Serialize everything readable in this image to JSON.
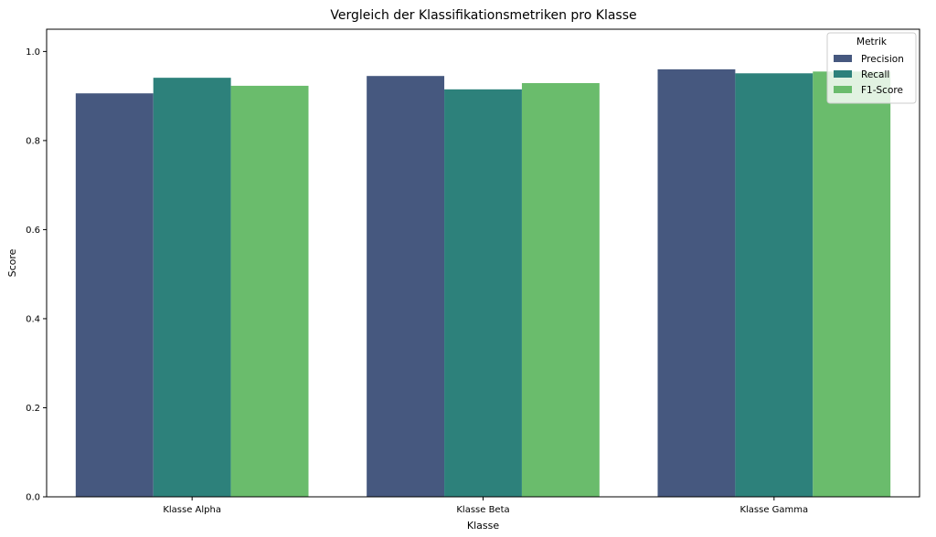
{
  "chart_data": {
    "type": "bar",
    "title": "Vergleich der Klassifikationsmetriken pro Klasse",
    "xlabel": "Klasse",
    "ylabel": "Score",
    "categories": [
      "Klasse Alpha",
      "Klasse Beta",
      "Klasse Gamma"
    ],
    "series": [
      {
        "name": "Precision",
        "values": [
          0.906,
          0.945,
          0.96
        ],
        "color": "#46587f"
      },
      {
        "name": "Recall",
        "values": [
          0.941,
          0.915,
          0.951
        ],
        "color": "#2d817b"
      },
      {
        "name": "F1-Score",
        "values": [
          0.923,
          0.929,
          0.955
        ],
        "color": "#6abc6c"
      }
    ],
    "ylim": [
      0,
      1.05
    ],
    "yticks": [
      0.0,
      0.2,
      0.4,
      0.6,
      0.8,
      1.0
    ],
    "ytick_labels": [
      "0.0",
      "0.2",
      "0.4",
      "0.6",
      "0.8",
      "1.0"
    ],
    "grid": false,
    "legend": {
      "title": "Metrik",
      "placement": "top-right"
    }
  }
}
